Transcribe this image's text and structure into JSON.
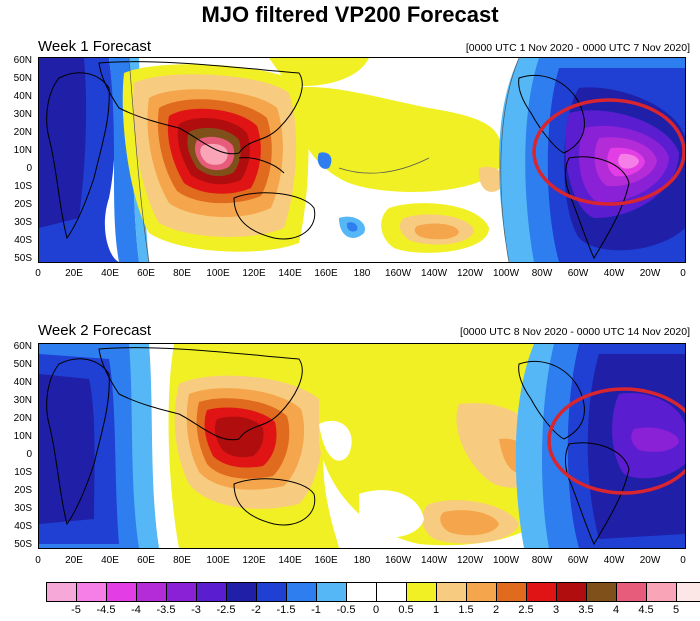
{
  "title": "MJO filtered VP200 Forecast",
  "panels": [
    {
      "label": "Week 1 Forecast",
      "range": "[0000 UTC 1 Nov 2020 - 0000 UTC 7 Nov 2020]"
    },
    {
      "label": "Week 2 Forecast",
      "range": "[0000 UTC 8 Nov 2020 - 0000 UTC 14 Nov 2020]"
    }
  ],
  "lat_labels": [
    "60N",
    "50N",
    "40N",
    "30N",
    "20N",
    "10N",
    "0",
    "10S",
    "20S",
    "30S",
    "40S",
    "50S"
  ],
  "lon_labels": [
    "0",
    "20E",
    "40E",
    "60E",
    "80E",
    "100E",
    "120E",
    "140E",
    "160E",
    "180",
    "160W",
    "140W",
    "120W",
    "100W",
    "80W",
    "60W",
    "40W",
    "20W",
    "0"
  ],
  "colorbar": {
    "labels": [
      "-5",
      "-4.5",
      "-4",
      "-3.5",
      "-3",
      "-2.5",
      "-2",
      "-1.5",
      "-1",
      "-0.5",
      "0",
      "0.5",
      "1",
      "1.5",
      "2",
      "2.5",
      "3",
      "3.5",
      "4",
      "4.5",
      "5"
    ],
    "colors": [
      "#f6a8d8",
      "#f57fe6",
      "#e33ee6",
      "#b42bd8",
      "#8a21d6",
      "#5b1dd0",
      "#1f1fa8",
      "#1f40d2",
      "#2e7ef0",
      "#55b7f5",
      "#ffffff",
      "#ffffff",
      "#f0f024",
      "#f8cc80",
      "#f5a64c",
      "#e06a1e",
      "#e01414",
      "#b00e0e",
      "#80501a",
      "#e65c7a",
      "#f9a5b7",
      "#fde6e6"
    ]
  },
  "annotations": [
    "red-ellipse-week1",
    "red-ellipse-week2"
  ]
}
